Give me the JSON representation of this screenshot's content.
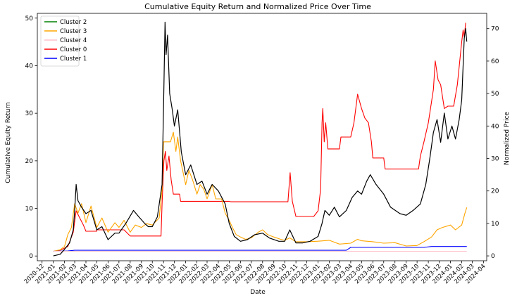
{
  "chart_data": {
    "type": "line",
    "title": "Cumulative Equity Return and Normalized Price Over Time",
    "xlabel": "Date",
    "ylabel": "Cumulative Equity Return",
    "y2label": "Normalized Price",
    "ylim": [
      -1,
      51
    ],
    "y_ticks": [
      0,
      10,
      20,
      30,
      40,
      50
    ],
    "y2lim": [
      -1.5,
      74.7
    ],
    "y2_ticks": [
      0,
      10,
      20,
      30,
      40,
      50,
      60,
      70
    ],
    "xlim": [
      "2020-11-18",
      "2024-04-10"
    ],
    "x_ticks": [
      "2020-12",
      "2021-01",
      "2021-02",
      "2021-03",
      "2021-04",
      "2021-05",
      "2021-06",
      "2021-07",
      "2021-08",
      "2021-09",
      "2021-10",
      "2021-11",
      "2021-12",
      "2022-01",
      "2022-02",
      "2022-03",
      "2022-04",
      "2022-05",
      "2022-06",
      "2022-07",
      "2022-08",
      "2022-09",
      "2022-10",
      "2022-11",
      "2022-12",
      "2023-01",
      "2023-02",
      "2023-03",
      "2023-04",
      "2023-05",
      "2023-06",
      "2023-07",
      "2023-08",
      "2023-09",
      "2023-10",
      "2023-11",
      "2023-12",
      "2024-01",
      "2024-02",
      "2024-03",
      "2024-04"
    ],
    "grid": false,
    "legend_position": "top-left",
    "legend": [
      {
        "name": "Cluster 2",
        "color": "#008000"
      },
      {
        "name": "Cluster 3",
        "color": "#ffa500"
      },
      {
        "name": "Cluster 4",
        "color": "#ffc0cb"
      },
      {
        "name": "Cluster 0",
        "color": "#ff0000"
      },
      {
        "name": "Cluster 1",
        "color": "#0000ff"
      }
    ],
    "series": [
      {
        "name": "Cluster 0",
        "color": "#ff0000",
        "axis": "left",
        "points": [
          [
            "2021-01-01",
            1.0
          ],
          [
            "2021-01-20",
            1.2
          ],
          [
            "2021-02-10",
            2.0
          ],
          [
            "2021-02-25",
            5.0
          ],
          [
            "2021-03-05",
            9.5
          ],
          [
            "2021-03-15",
            8.0
          ],
          [
            "2021-03-25",
            6.5
          ],
          [
            "2021-04-01",
            5.2
          ],
          [
            "2021-05-01",
            5.2
          ],
          [
            "2021-05-01",
            5.5
          ],
          [
            "2021-07-01",
            5.5
          ],
          [
            "2021-07-15",
            5.5
          ],
          [
            "2021-08-01",
            4.2
          ],
          [
            "2021-09-01",
            4.2
          ],
          [
            "2021-10-01",
            4.2
          ],
          [
            "2021-10-25",
            4.2
          ],
          [
            "2021-10-28",
            11.0
          ],
          [
            "2021-11-02",
            20.0
          ],
          [
            "2021-11-06",
            22.0
          ],
          [
            "2021-11-10",
            18.0
          ],
          [
            "2021-11-16",
            21.0
          ],
          [
            "2021-11-22",
            16.0
          ],
          [
            "2021-11-28",
            13.0
          ],
          [
            "2021-12-15",
            13.0
          ],
          [
            "2021-12-18",
            11.5
          ],
          [
            "2022-04-01",
            11.5
          ],
          [
            "2022-05-01",
            11.5
          ],
          [
            "2022-05-05",
            11.4
          ],
          [
            "2022-10-01",
            11.4
          ],
          [
            "2022-10-10",
            11.4
          ],
          [
            "2022-10-16",
            17.5
          ],
          [
            "2022-10-22",
            11.5
          ],
          [
            "2022-11-01",
            8.3
          ],
          [
            "2022-12-10",
            8.3
          ],
          [
            "2022-12-20",
            8.3
          ],
          [
            "2023-01-01",
            9.5
          ],
          [
            "2023-01-08",
            14.0
          ],
          [
            "2023-01-12",
            28.0
          ],
          [
            "2023-01-14",
            31.0
          ],
          [
            "2023-01-18",
            24.0
          ],
          [
            "2023-01-22",
            28.0
          ],
          [
            "2023-01-28",
            22.5
          ],
          [
            "2023-02-20",
            22.5
          ],
          [
            "2023-02-25",
            22.5
          ],
          [
            "2023-03-01",
            22.5
          ],
          [
            "2023-03-05",
            25.0
          ],
          [
            "2023-04-01",
            25.0
          ],
          [
            "2023-04-10",
            28.0
          ],
          [
            "2023-04-20",
            34.0
          ],
          [
            "2023-05-01",
            31.0
          ],
          [
            "2023-05-10",
            29.0
          ],
          [
            "2023-05-20",
            28.0
          ],
          [
            "2023-05-28",
            24.0
          ],
          [
            "2023-06-01",
            20.6
          ],
          [
            "2023-07-01",
            20.6
          ],
          [
            "2023-07-05",
            18.3
          ],
          [
            "2023-10-01",
            18.3
          ],
          [
            "2023-10-05",
            18.3
          ],
          [
            "2023-10-10",
            21.0
          ],
          [
            "2023-10-20",
            24.0
          ],
          [
            "2023-11-01",
            28.0
          ],
          [
            "2023-11-15",
            35.0
          ],
          [
            "2023-11-20",
            41.0
          ],
          [
            "2023-11-28",
            37.0
          ],
          [
            "2023-12-05",
            36.0
          ],
          [
            "2023-12-15",
            31.0
          ],
          [
            "2023-12-25",
            31.5
          ],
          [
            "2024-01-10",
            31.5
          ],
          [
            "2024-01-20",
            36.0
          ],
          [
            "2024-02-01",
            45.0
          ],
          [
            "2024-02-05",
            47.5
          ],
          [
            "2024-02-08",
            46.0
          ],
          [
            "2024-02-12",
            49.0
          ]
        ]
      },
      {
        "name": "Cluster 3",
        "color": "#ffa500",
        "axis": "left",
        "points": [
          [
            "2021-01-01",
            1.0
          ],
          [
            "2021-01-20",
            1.3
          ],
          [
            "2021-02-01",
            2.0
          ],
          [
            "2021-02-10",
            4.5
          ],
          [
            "2021-02-20",
            6.0
          ],
          [
            "2021-03-01",
            11.0
          ],
          [
            "2021-03-10",
            9.0
          ],
          [
            "2021-03-20",
            11.0
          ],
          [
            "2021-04-01",
            7.0
          ],
          [
            "2021-04-15",
            10.5
          ],
          [
            "2021-05-01",
            6.0
          ],
          [
            "2021-05-15",
            8.0
          ],
          [
            "2021-06-01",
            5.0
          ],
          [
            "2021-06-20",
            7.0
          ],
          [
            "2021-07-01",
            6.0
          ],
          [
            "2021-07-15",
            7.5
          ],
          [
            "2021-08-01",
            5.0
          ],
          [
            "2021-08-15",
            6.5
          ],
          [
            "2021-09-01",
            6.0
          ],
          [
            "2021-09-15",
            6.8
          ],
          [
            "2021-10-01",
            6.5
          ],
          [
            "2021-10-20",
            8.0
          ],
          [
            "2021-10-28",
            14.0
          ],
          [
            "2021-11-01",
            24.0
          ],
          [
            "2021-11-15",
            24.0
          ],
          [
            "2021-11-20",
            24.0
          ],
          [
            "2021-11-28",
            26.0
          ],
          [
            "2021-12-05",
            22.0
          ],
          [
            "2021-12-10",
            25.0
          ],
          [
            "2021-12-18",
            20.0
          ],
          [
            "2022-01-01",
            15.0
          ],
          [
            "2022-01-10",
            18.0
          ],
          [
            "2022-01-20",
            16.0
          ],
          [
            "2022-02-01",
            13.0
          ],
          [
            "2022-02-10",
            15.0
          ],
          [
            "2022-02-20",
            14.0
          ],
          [
            "2022-03-01",
            12.0
          ],
          [
            "2022-03-15",
            15.0
          ],
          [
            "2022-03-25",
            12.0
          ],
          [
            "2022-04-10",
            12.0
          ],
          [
            "2022-04-20",
            9.0
          ],
          [
            "2022-05-01",
            7.5
          ],
          [
            "2022-05-10",
            6.0
          ],
          [
            "2022-05-20",
            4.5
          ],
          [
            "2022-06-01",
            4.0
          ],
          [
            "2022-06-15",
            3.5
          ],
          [
            "2022-07-01",
            3.8
          ],
          [
            "2022-07-20",
            5.0
          ],
          [
            "2022-08-01",
            5.5
          ],
          [
            "2022-08-15",
            4.5
          ],
          [
            "2022-09-01",
            4.0
          ],
          [
            "2022-09-20",
            3.5
          ],
          [
            "2022-10-01",
            3.3
          ],
          [
            "2022-10-15",
            3.8
          ],
          [
            "2022-11-01",
            3.0
          ],
          [
            "2022-12-01",
            3.0
          ],
          [
            "2023-01-01",
            3.1
          ],
          [
            "2023-02-01",
            3.3
          ],
          [
            "2023-03-01",
            2.5
          ],
          [
            "2023-04-01",
            2.7
          ],
          [
            "2023-04-20",
            3.5
          ],
          [
            "2023-05-01",
            3.2
          ],
          [
            "2023-06-01",
            3.0
          ],
          [
            "2023-07-01",
            2.7
          ],
          [
            "2023-08-01",
            2.8
          ],
          [
            "2023-09-01",
            2.1
          ],
          [
            "2023-10-01",
            2.2
          ],
          [
            "2023-10-20",
            3.0
          ],
          [
            "2023-11-10",
            4.0
          ],
          [
            "2023-11-25",
            5.5
          ],
          [
            "2023-12-10",
            6.0
          ],
          [
            "2024-01-01",
            6.5
          ],
          [
            "2024-01-15",
            5.5
          ],
          [
            "2024-02-01",
            6.5
          ],
          [
            "2024-02-10",
            9.0
          ],
          [
            "2024-02-15",
            10.2
          ]
        ]
      },
      {
        "name": "Cluster 1",
        "color": "#0000ff",
        "axis": "left",
        "points": [
          [
            "2021-01-01",
            1.0
          ],
          [
            "2021-02-10",
            1.05
          ],
          [
            "2021-03-01",
            1.2
          ],
          [
            "2023-03-20",
            1.2
          ],
          [
            "2023-04-01",
            1.8
          ],
          [
            "2023-10-20",
            1.8
          ],
          [
            "2023-11-10",
            2.0
          ],
          [
            "2024-02-15",
            2.0
          ]
        ]
      },
      {
        "name": "Cluster 4",
        "color": "#ffc0cb",
        "axis": "left",
        "points": [
          [
            "2021-01-01",
            1.0
          ],
          [
            "2024-02-15",
            1.0
          ]
        ]
      },
      {
        "name": "",
        "color": "#000000",
        "axis": "right",
        "points": [
          [
            "2021-01-01",
            0.0
          ],
          [
            "2021-01-20",
            0.5
          ],
          [
            "2021-02-01",
            2.0
          ],
          [
            "2021-02-15",
            4.0
          ],
          [
            "2021-02-25",
            8.0
          ],
          [
            "2021-03-01",
            14.0
          ],
          [
            "2021-03-05",
            22.0
          ],
          [
            "2021-03-10",
            17.0
          ],
          [
            "2021-03-20",
            15.0
          ],
          [
            "2021-04-01",
            13.0
          ],
          [
            "2021-04-15",
            14.0
          ],
          [
            "2021-05-01",
            8.0
          ],
          [
            "2021-05-15",
            9.0
          ],
          [
            "2021-06-01",
            5.0
          ],
          [
            "2021-06-20",
            7.0
          ],
          [
            "2021-07-01",
            7.0
          ],
          [
            "2021-07-20",
            10.0
          ],
          [
            "2021-08-10",
            14.0
          ],
          [
            "2021-08-25",
            12.0
          ],
          [
            "2021-09-10",
            10.0
          ],
          [
            "2021-09-20",
            9.0
          ],
          [
            "2021-10-01",
            9.0
          ],
          [
            "2021-10-15",
            12.0
          ],
          [
            "2021-10-28",
            22.0
          ],
          [
            "2021-11-02",
            52.0
          ],
          [
            "2021-11-05",
            72.0
          ],
          [
            "2021-11-08",
            62.0
          ],
          [
            "2021-11-12",
            68.0
          ],
          [
            "2021-11-18",
            50.0
          ],
          [
            "2021-11-25",
            45.0
          ],
          [
            "2021-12-01",
            40.0
          ],
          [
            "2021-12-10",
            45.0
          ],
          [
            "2021-12-20",
            32.0
          ],
          [
            "2022-01-01",
            25.0
          ],
          [
            "2022-01-15",
            28.0
          ],
          [
            "2022-02-01",
            22.0
          ],
          [
            "2022-02-15",
            23.0
          ],
          [
            "2022-03-01",
            19.0
          ],
          [
            "2022-03-15",
            22.0
          ],
          [
            "2022-04-01",
            20.0
          ],
          [
            "2022-04-20",
            16.0
          ],
          [
            "2022-05-01",
            10.0
          ],
          [
            "2022-05-15",
            6.0
          ],
          [
            "2022-06-01",
            4.5
          ],
          [
            "2022-06-20",
            5.0
          ],
          [
            "2022-07-10",
            6.5
          ],
          [
            "2022-08-01",
            7.0
          ],
          [
            "2022-08-20",
            5.5
          ],
          [
            "2022-09-15",
            4.5
          ],
          [
            "2022-10-01",
            4.5
          ],
          [
            "2022-10-15",
            8.0
          ],
          [
            "2022-11-01",
            4.0
          ],
          [
            "2022-11-20",
            4.0
          ],
          [
            "2022-12-10",
            4.5
          ],
          [
            "2023-01-01",
            6.0
          ],
          [
            "2023-01-12",
            10.0
          ],
          [
            "2023-01-20",
            14.0
          ],
          [
            "2023-02-01",
            12.5
          ],
          [
            "2023-02-15",
            15.0
          ],
          [
            "2023-03-01",
            12.0
          ],
          [
            "2023-03-20",
            14.0
          ],
          [
            "2023-04-05",
            18.0
          ],
          [
            "2023-04-20",
            20.0
          ],
          [
            "2023-05-01",
            19.0
          ],
          [
            "2023-05-15",
            23.0
          ],
          [
            "2023-05-25",
            25.0
          ],
          [
            "2023-06-10",
            22.0
          ],
          [
            "2023-07-01",
            19.0
          ],
          [
            "2023-07-20",
            15.0
          ],
          [
            "2023-08-15",
            13.0
          ],
          [
            "2023-09-01",
            12.5
          ],
          [
            "2023-09-20",
            14.0
          ],
          [
            "2023-10-10",
            16.0
          ],
          [
            "2023-10-25",
            22.0
          ],
          [
            "2023-11-05",
            30.0
          ],
          [
            "2023-11-15",
            38.0
          ],
          [
            "2023-11-25",
            42.0
          ],
          [
            "2023-12-05",
            35.0
          ],
          [
            "2023-12-15",
            44.0
          ],
          [
            "2023-12-25",
            36.0
          ],
          [
            "2024-01-05",
            40.0
          ],
          [
            "2024-01-15",
            36.0
          ],
          [
            "2024-01-25",
            42.0
          ],
          [
            "2024-02-01",
            48.0
          ],
          [
            "2024-02-08",
            67.0
          ],
          [
            "2024-02-12",
            70.0
          ],
          [
            "2024-02-15",
            66.0
          ]
        ]
      }
    ]
  }
}
